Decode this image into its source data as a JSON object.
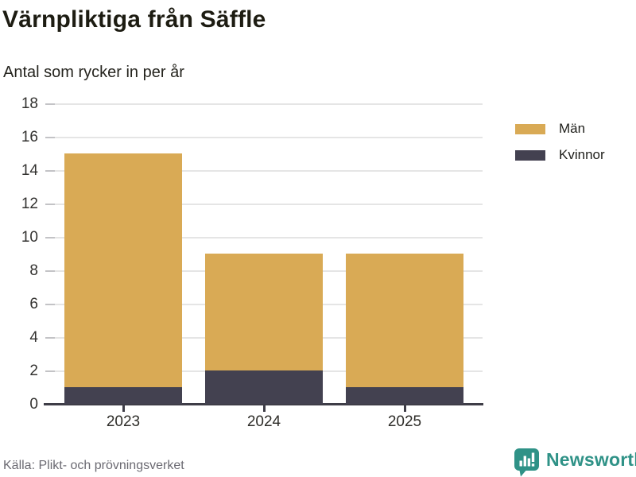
{
  "chart_data": {
    "type": "bar",
    "stacked": true,
    "title": "Värnpliktiga från Säffle",
    "subtitle": "Antal som rycker in per år",
    "categories": [
      "2023",
      "2024",
      "2025"
    ],
    "series": [
      {
        "name": "Män",
        "color": "#d9aa55",
        "values": [
          14,
          7,
          8
        ]
      },
      {
        "name": "Kvinnor",
        "color": "#434150",
        "values": [
          1,
          2,
          1
        ]
      }
    ],
    "stack_order_bottom_up": [
      "Kvinnor",
      "Män"
    ],
    "totals": [
      15,
      9,
      9
    ],
    "ylim": [
      0,
      18
    ],
    "yticks": [
      0,
      2,
      4,
      6,
      8,
      10,
      12,
      14,
      16,
      18
    ],
    "grid": true,
    "legend_position": "right",
    "xlabel": "",
    "ylabel": ""
  },
  "footer": {
    "source": "Källa: Plikt- och prövningsverket",
    "brand": "Newsworthy"
  },
  "colors": {
    "men": "#d9aa55",
    "women": "#434150",
    "axis": "#3e3d47",
    "grid": "#e5e5e5",
    "brand_teal": "#2f9287",
    "title_text": "#1d1c12",
    "muted_text": "#6b6a72"
  }
}
